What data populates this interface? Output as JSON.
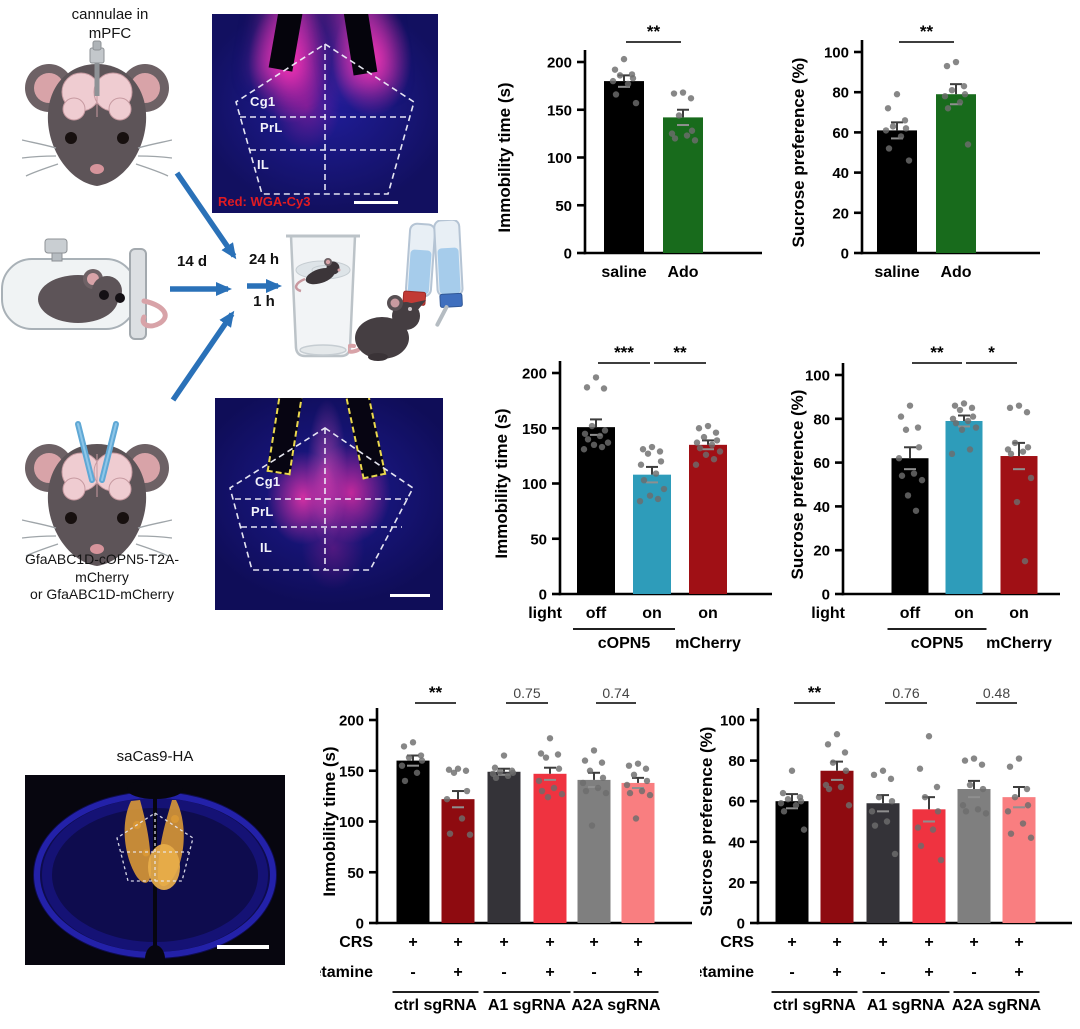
{
  "diagram": {
    "cannulae_label": "cannulae in\nmPFC",
    "construct_label": "GfaABC1D-cOPN5-T2A-\nmCherry\nor GfaABC1D-mCherry",
    "timeline": {
      "restraint_duration": "14 d",
      "fst_delay": "24 h",
      "spt_delay": "1 h"
    },
    "arrow_color": "#2a71b8"
  },
  "histology_top": {
    "regions": [
      "Cg1",
      "PrL",
      "IL"
    ],
    "caption": "Red: WGA-Cy3"
  },
  "histology_mid": {
    "regions": [
      "Cg1",
      "PrL",
      "IL"
    ]
  },
  "histology_bottom": {
    "title": "saCas9-HA"
  },
  "chart_data": [
    {
      "type": "bar",
      "ylabel": "Immobility time (s)",
      "ylim": [
        0,
        200
      ],
      "yticks": [
        0,
        50,
        100,
        150,
        200
      ],
      "categories": [
        "saline",
        "Ado"
      ],
      "values": [
        180,
        142
      ],
      "errors": [
        6,
        8
      ],
      "colors": [
        "#000000",
        "#186b1c"
      ],
      "points": [
        [
          203,
          192,
          187,
          186,
          183,
          180,
          177,
          166,
          157
        ],
        [
          168,
          167,
          162,
          144,
          128,
          125,
          123,
          120,
          118
        ]
      ],
      "sig": [
        {
          "a": 0,
          "b": 1,
          "label": "**"
        }
      ]
    },
    {
      "type": "bar",
      "ylabel": "Sucrose preference (%)",
      "ylim": [
        0,
        100
      ],
      "yticks": [
        0,
        20,
        40,
        60,
        80,
        100
      ],
      "categories": [
        "saline",
        "Ado"
      ],
      "values": [
        61,
        79
      ],
      "errors": [
        4,
        5
      ],
      "colors": [
        "#000000",
        "#186b1c"
      ],
      "points": [
        [
          79,
          72,
          66,
          63,
          62,
          61,
          58,
          52,
          46
        ],
        [
          95,
          93,
          83,
          81,
          79,
          78,
          75,
          72,
          54
        ]
      ],
      "sig": [
        {
          "a": 0,
          "b": 1,
          "label": "**"
        }
      ]
    },
    {
      "type": "bar",
      "ylabel": "Immobility time (s)",
      "ylim": [
        0,
        200
      ],
      "yticks": [
        0,
        50,
        100,
        150,
        200
      ],
      "x_prefix": "light",
      "categories": [
        "off",
        "on",
        "on"
      ],
      "groups": [
        {
          "label": "cOPN5",
          "from": 0,
          "to": 1,
          "line": true
        },
        {
          "label": "mCherry",
          "from": 2,
          "to": 2,
          "line": false
        }
      ],
      "values": [
        151,
        108,
        135
      ],
      "errors": [
        7,
        7,
        4
      ],
      "colors": [
        "#000000",
        "#2e9cba",
        "#a01015"
      ],
      "points": [
        [
          196,
          187,
          186,
          152,
          148,
          145,
          143,
          140,
          137,
          135,
          133,
          131
        ],
        [
          133,
          131,
          129,
          127,
          120,
          117,
          109,
          103,
          95,
          89,
          86,
          84
        ],
        [
          152,
          150,
          146,
          142,
          139,
          137,
          135,
          132,
          129,
          126,
          122,
          117
        ]
      ],
      "sig": [
        {
          "a": 0,
          "b": 1,
          "label": "***"
        },
        {
          "a": 1,
          "b": 2,
          "label": "**"
        }
      ]
    },
    {
      "type": "bar",
      "ylabel": "Sucrose preference (%)",
      "ylim": [
        0,
        100
      ],
      "yticks": [
        0,
        20,
        40,
        60,
        80,
        100
      ],
      "x_prefix": "light",
      "categories": [
        "off",
        "on",
        "on"
      ],
      "groups": [
        {
          "label": "cOPN5",
          "from": 0,
          "to": 1,
          "line": true
        },
        {
          "label": "mCherry",
          "from": 2,
          "to": 2,
          "line": false
        }
      ],
      "values": [
        62,
        79,
        63
      ],
      "errors": [
        5,
        2.5,
        6
      ],
      "colors": [
        "#000000",
        "#2e9cba",
        "#a01015"
      ],
      "points": [
        [
          86,
          81,
          76,
          75,
          67,
          62,
          55,
          54,
          52,
          45,
          38
        ],
        [
          87,
          86,
          85,
          84,
          81,
          80,
          79,
          78,
          76,
          75,
          66,
          64
        ],
        [
          86,
          85,
          83,
          69,
          67,
          66,
          65,
          64,
          53,
          42,
          15
        ]
      ],
      "sig": [
        {
          "a": 0,
          "b": 1,
          "label": "**"
        },
        {
          "a": 1,
          "b": 2,
          "label": "*"
        }
      ]
    },
    {
      "type": "bar",
      "ylabel": "Immobility time (s)",
      "ylim": [
        0,
        200
      ],
      "yticks": [
        0,
        50,
        100,
        150,
        200
      ],
      "factors": [
        {
          "label": "CRS",
          "values": [
            "+",
            "+",
            "+",
            "+",
            "+",
            "+"
          ]
        },
        {
          "label": "ketamine",
          "values": [
            "-",
            "+",
            "-",
            "+",
            "-",
            "+"
          ]
        }
      ],
      "groups": [
        {
          "label": "ctrl sgRNA",
          "from": 0,
          "to": 1,
          "line": true
        },
        {
          "label": "A1 sgRNA",
          "from": 2,
          "to": 3,
          "line": true
        },
        {
          "label": "A2A sgRNA",
          "from": 4,
          "to": 5,
          "line": true
        }
      ],
      "values": [
        160,
        122,
        149,
        147,
        141,
        138
      ],
      "errors": [
        5,
        8,
        3,
        6,
        7,
        5
      ],
      "colors": [
        "#000000",
        "#8e0b10",
        "#343338",
        "#ef3340",
        "#7f7f7f",
        "#f97e80"
      ],
      "points": [
        [
          178,
          174,
          165,
          163,
          160,
          155,
          148,
          140
        ],
        [
          152,
          151,
          150,
          148,
          130,
          122,
          103,
          88,
          87
        ],
        [
          165,
          153,
          150,
          149,
          148,
          147,
          145,
          143
        ],
        [
          182,
          167,
          166,
          163,
          152,
          140,
          133,
          130,
          127,
          124
        ],
        [
          170,
          160,
          158,
          150,
          143,
          138,
          133,
          130,
          128,
          96
        ],
        [
          157,
          155,
          152,
          146,
          140,
          136,
          130,
          128,
          126,
          103
        ]
      ],
      "sig": [
        {
          "a": 0,
          "b": 1,
          "label": "**"
        },
        {
          "a": 2,
          "b": 3,
          "label": "0.75"
        },
        {
          "a": 4,
          "b": 5,
          "label": "0.74"
        }
      ]
    },
    {
      "type": "bar",
      "ylabel": "Sucrose preference (%)",
      "ylim": [
        0,
        100
      ],
      "yticks": [
        0,
        20,
        40,
        60,
        80,
        100
      ],
      "factors": [
        {
          "label": "CRS",
          "values": [
            "+",
            "+",
            "+",
            "+",
            "+",
            "+"
          ]
        },
        {
          "label": "ketamine",
          "values": [
            "-",
            "+",
            "-",
            "+",
            "-",
            "+"
          ]
        }
      ],
      "groups": [
        {
          "label": "ctrl sgRNA",
          "from": 0,
          "to": 1,
          "line": true
        },
        {
          "label": "A1 sgRNA",
          "from": 2,
          "to": 3,
          "line": true
        },
        {
          "label": "A2A sgRNA",
          "from": 4,
          "to": 5,
          "line": true
        }
      ],
      "values": [
        60,
        75,
        59,
        56,
        66,
        62
      ],
      "errors": [
        3.5,
        4.5,
        4,
        6,
        4,
        5
      ],
      "colors": [
        "#000000",
        "#8e0b10",
        "#343338",
        "#ef3340",
        "#7f7f7f",
        "#f97e80"
      ],
      "points": [
        [
          75,
          64,
          62,
          61,
          60,
          59,
          58,
          55,
          46
        ],
        [
          93,
          88,
          84,
          79,
          75,
          68,
          67,
          66,
          58
        ],
        [
          75,
          73,
          71,
          62,
          60,
          55,
          50,
          48,
          34
        ],
        [
          92,
          76,
          67,
          62,
          55,
          47,
          46,
          38,
          31
        ],
        [
          81,
          80,
          78,
          68,
          66,
          58,
          56,
          55,
          54
        ],
        [
          81,
          77,
          66,
          62,
          58,
          55,
          49,
          44,
          42
        ]
      ],
      "sig": [
        {
          "a": 0,
          "b": 1,
          "label": "**"
        },
        {
          "a": 2,
          "b": 3,
          "label": "0.76"
        },
        {
          "a": 4,
          "b": 5,
          "label": "0.48"
        }
      ]
    }
  ]
}
